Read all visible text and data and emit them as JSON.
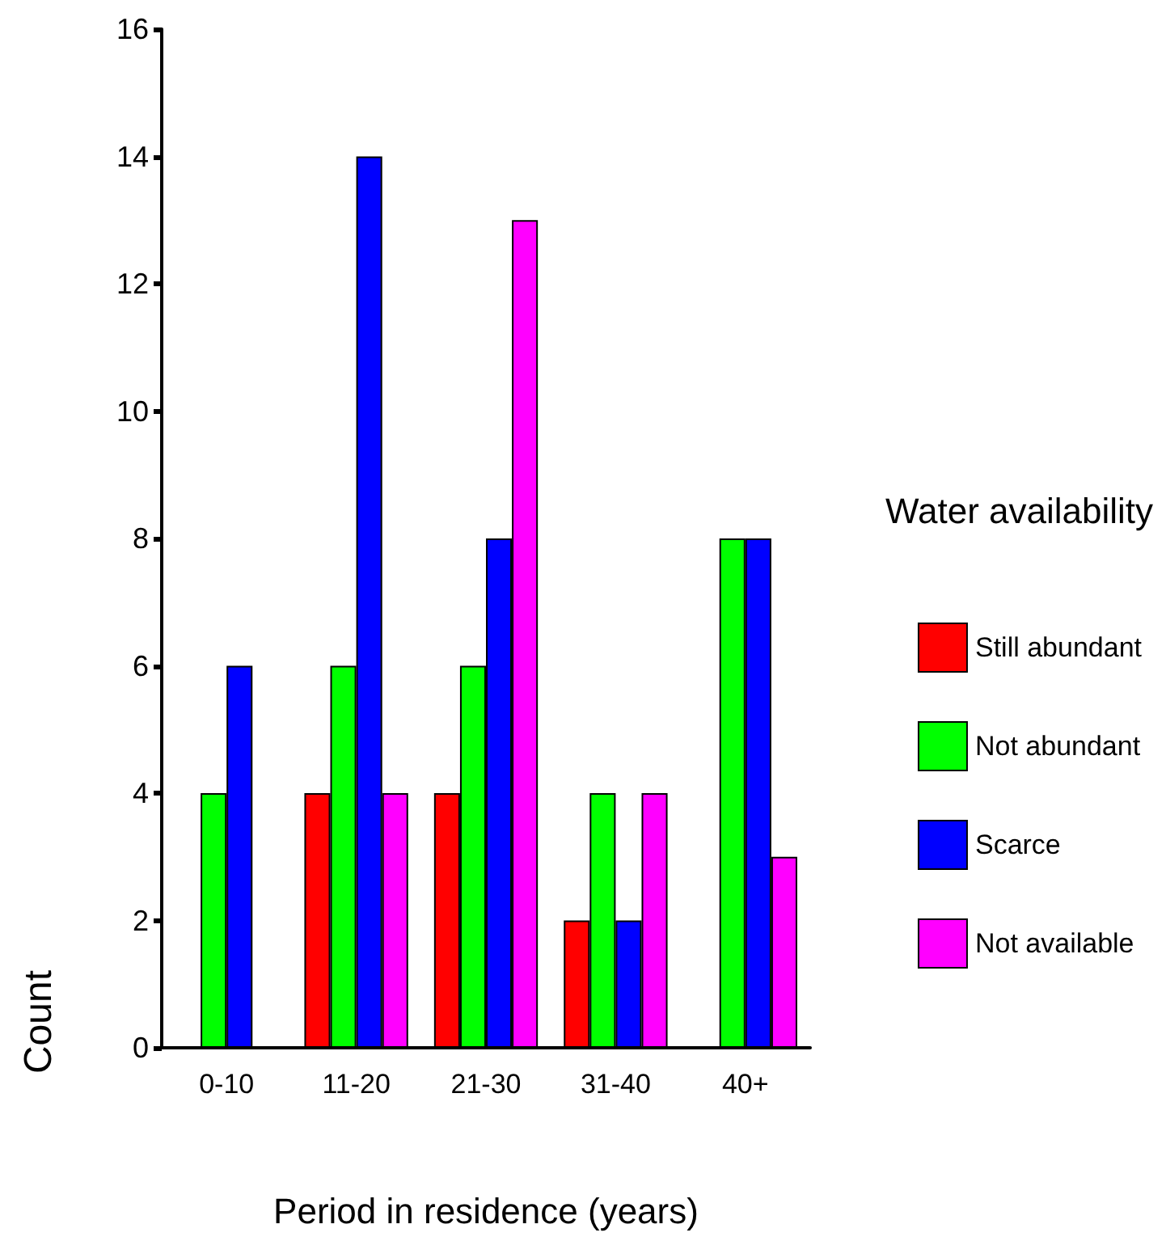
{
  "chart_data": {
    "type": "bar",
    "xlabel": "Period in residence (years)",
    "ylabel": "Count",
    "legend_title": "Water availability",
    "categories": [
      "0-10",
      "11-20",
      "21-30",
      "31-40",
      "40+"
    ],
    "series": [
      {
        "name": "Still abundant",
        "color": "#ff0000",
        "values": [
          null,
          4,
          4,
          2,
          null
        ]
      },
      {
        "name": "Not abundant",
        "color": "#00ff00",
        "values": [
          4,
          6,
          6,
          4,
          8
        ]
      },
      {
        "name": "Scarce",
        "color": "#0000ff",
        "values": [
          6,
          14,
          8,
          2,
          8
        ]
      },
      {
        "name": "Not available",
        "color": "#ff00ff",
        "values": [
          null,
          4,
          13,
          4,
          3
        ]
      }
    ],
    "ylim": [
      0,
      16
    ],
    "yticks": [
      0,
      2,
      4,
      6,
      8,
      10,
      12,
      14,
      16
    ],
    "grid": false,
    "legend": "right"
  }
}
